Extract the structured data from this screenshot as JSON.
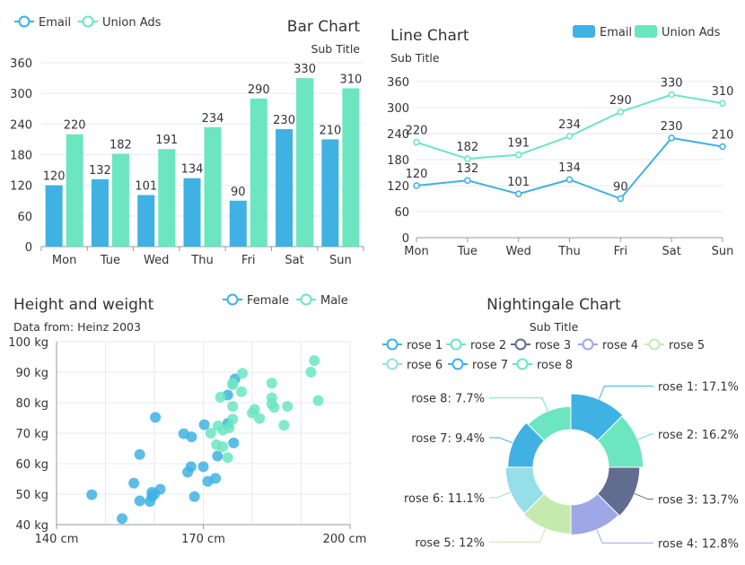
{
  "colors": {
    "email": "#3fb1e3",
    "union": "#6be6c1",
    "female": "#3fb1e3",
    "male": "#6be6c1",
    "axis": "#999999",
    "grid": "#e6e9ef",
    "text": "#333333",
    "rose": [
      "#3fb1e3",
      "#6be6c1",
      "#626c91",
      "#a0a7e6",
      "#c4ebad",
      "#96dee8",
      "#3fb1e3",
      "#6be6c1"
    ]
  },
  "chart_data": [
    {
      "type": "bar",
      "title": "Bar Chart",
      "subtitle": "Sub Title",
      "categories": [
        "Mon",
        "Tue",
        "Wed",
        "Thu",
        "Fri",
        "Sat",
        "Sun"
      ],
      "series": [
        {
          "name": "Email",
          "values": [
            120,
            132,
            101,
            134,
            90,
            230,
            210
          ]
        },
        {
          "name": "Union Ads",
          "values": [
            220,
            182,
            191,
            234,
            290,
            330,
            310
          ]
        }
      ],
      "ylim": [
        0,
        360
      ],
      "yticks": [
        "0",
        "60",
        "120",
        "180",
        "240",
        "300",
        "360"
      ],
      "grid": true,
      "legend": "top-left"
    },
    {
      "type": "line",
      "title": "Line Chart",
      "subtitle": "Sub Title",
      "categories": [
        "Mon",
        "Tue",
        "Wed",
        "Thu",
        "Fri",
        "Sat",
        "Sun"
      ],
      "series": [
        {
          "name": "Email",
          "values": [
            120,
            132,
            101,
            134,
            90,
            230,
            210
          ]
        },
        {
          "name": "Union Ads",
          "values": [
            220,
            182,
            191,
            234,
            290,
            330,
            310
          ]
        }
      ],
      "ylim": [
        0,
        360
      ],
      "yticks": [
        "0",
        "60",
        "120",
        "180",
        "240",
        "300",
        "360"
      ],
      "grid": true,
      "legend": "top-right"
    },
    {
      "type": "scatter",
      "title": "Height and weight",
      "subtitle": "Data from: Heinz 2003",
      "xlim": [
        140,
        200
      ],
      "ylim": [
        40,
        100
      ],
      "xticks": [
        "140 cm",
        "170 cm",
        "200 cm"
      ],
      "yticks": [
        "40 kg",
        "50 kg",
        "60 kg",
        "70 kg",
        "80 kg",
        "90 kg",
        "100 kg"
      ],
      "grid": true,
      "legend": "top-right",
      "series": [
        {
          "name": "Female",
          "points": [
            [
              161.2,
              51.6
            ],
            [
              167.5,
              59.0
            ],
            [
              159.5,
              49.2
            ],
            [
              157.0,
              63.0
            ],
            [
              155.8,
              53.6
            ],
            [
              170.0,
              59.0
            ],
            [
              159.1,
              47.6
            ],
            [
              166.0,
              69.8
            ],
            [
              176.2,
              66.8
            ],
            [
              160.2,
              75.2
            ],
            [
              172.5,
              55.2
            ],
            [
              170.9,
              54.2
            ],
            [
              172.9,
              62.5
            ],
            [
              153.4,
              42.0
            ],
            [
              160.0,
              50.0
            ],
            [
              147.2,
              49.8
            ],
            [
              168.2,
              49.2
            ],
            [
              175.0,
              73.2
            ],
            [
              157.0,
              47.8
            ],
            [
              167.6,
              68.8
            ],
            [
              159.5,
              50.6
            ],
            [
              175.0,
              82.5
            ],
            [
              166.8,
              57.2
            ],
            [
              176.5,
              87.8
            ],
            [
              170.2,
              72.8
            ]
          ]
        },
        {
          "name": "Male",
          "points": [
            [
              174.0,
              65.6
            ],
            [
              175.3,
              71.8
            ],
            [
              193.5,
              80.7
            ],
            [
              186.5,
              72.6
            ],
            [
              187.2,
              78.8
            ],
            [
              181.5,
              74.8
            ],
            [
              184.0,
              86.4
            ],
            [
              184.5,
              78.4
            ],
            [
              175.0,
              62.0
            ],
            [
              184.0,
              81.6
            ],
            [
              180.0,
              76.6
            ],
            [
              177.8,
              83.6
            ],
            [
              192.0,
              90.0
            ],
            [
              176.0,
              74.6
            ],
            [
              174.0,
              71.0
            ],
            [
              184.0,
              79.6
            ],
            [
              192.7,
              93.8
            ],
            [
              171.5,
              70.0
            ],
            [
              173.0,
              72.4
            ],
            [
              176.0,
              85.9
            ],
            [
              176.0,
              78.8
            ],
            [
              180.5,
              77.8
            ],
            [
              172.7,
              66.2
            ],
            [
              176.0,
              86.4
            ],
            [
              173.5,
              81.8
            ],
            [
              178.0,
              89.6
            ]
          ]
        }
      ]
    },
    {
      "type": "pie",
      "title": "Nightingale Chart",
      "subtitle": "Sub Title",
      "legend": "top",
      "slices": [
        {
          "name": "rose 1",
          "value": 17.1,
          "label": "rose 1: 17.1%"
        },
        {
          "name": "rose 2",
          "value": 16.2,
          "label": "rose 2: 16.2%"
        },
        {
          "name": "rose 3",
          "value": 13.7,
          "label": "rose 3: 13.7%"
        },
        {
          "name": "rose 4",
          "value": 12.8,
          "label": "rose 4: 12.8%"
        },
        {
          "name": "rose 5",
          "value": 12.0,
          "label": "rose 5: 12%"
        },
        {
          "name": "rose 6",
          "value": 11.1,
          "label": "rose 6: 11.1%"
        },
        {
          "name": "rose 7",
          "value": 9.4,
          "label": "rose 7: 9.4%"
        },
        {
          "name": "rose 8",
          "value": 7.7,
          "label": "rose 8: 7.7%"
        }
      ]
    }
  ]
}
